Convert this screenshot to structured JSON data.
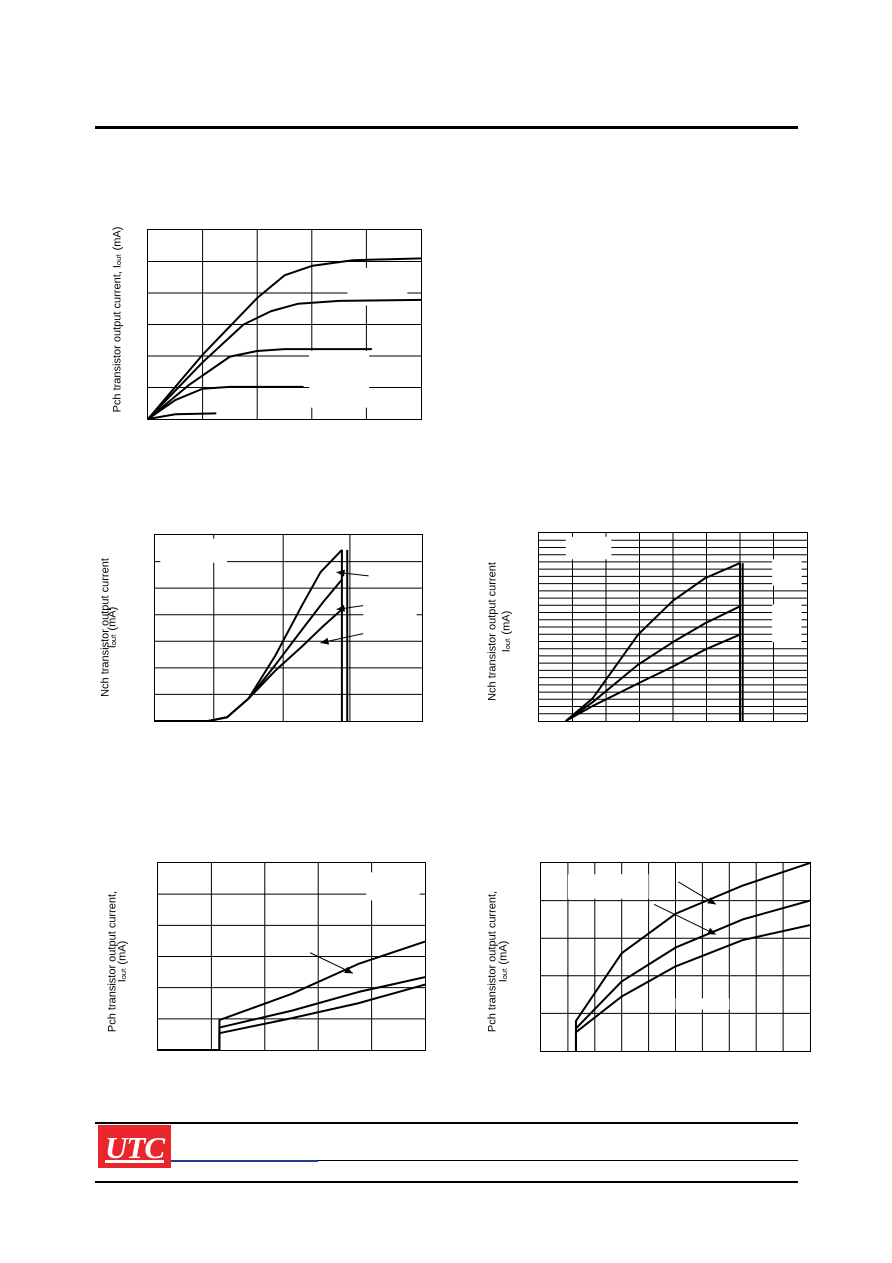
{
  "page": {
    "logo_text": "UTC",
    "brand_color": "#e8262c",
    "accent_color": "#2b3990"
  },
  "ylabels": {
    "chart1": "Pch transistor output current, Iₒᵤₜ (mA)",
    "chart2_l1": "Nch transistor output current",
    "chart2_l2": "Iₒᵤₜ (mA)",
    "chart3_l1": "Nch transistor output current",
    "chart3_l2": "Iₒᵤₜ (mA)",
    "chart4_l1": "Pch transistor output current,",
    "chart4_l2": "Iₒᵤₜ (mA)",
    "chart5_l1": "Pch transistor output current,",
    "chart5_l2": "Iₒᵤₜ (mA)"
  },
  "chart_data": [
    {
      "type": "line",
      "id": "chart1",
      "grid": true,
      "xdiv": 5,
      "ydiv": 6,
      "xlim": [
        0,
        1
      ],
      "ylim": [
        0,
        1
      ],
      "series": [
        {
          "values": [
            [
              0,
              0
            ],
            [
              0.2,
              0.34
            ],
            [
              0.4,
              0.64
            ],
            [
              0.5,
              0.76
            ],
            [
              0.6,
              0.81
            ],
            [
              0.75,
              0.84
            ],
            [
              1,
              0.85
            ]
          ]
        },
        {
          "values": [
            [
              0,
              0
            ],
            [
              0.2,
              0.3
            ],
            [
              0.35,
              0.5
            ],
            [
              0.45,
              0.57
            ],
            [
              0.55,
              0.61
            ],
            [
              0.7,
              0.625
            ],
            [
              1,
              0.63
            ]
          ]
        },
        {
          "values": [
            [
              0,
              0
            ],
            [
              0.15,
              0.18
            ],
            [
              0.3,
              0.33
            ],
            [
              0.4,
              0.36
            ],
            [
              0.5,
              0.37
            ],
            [
              0.82,
              0.37
            ]
          ]
        },
        {
          "values": [
            [
              0,
              0
            ],
            [
              0.1,
              0.1
            ],
            [
              0.2,
              0.16
            ],
            [
              0.3,
              0.17
            ],
            [
              0.57,
              0.17
            ]
          ]
        },
        {
          "values": [
            [
              0,
              0
            ],
            [
              0.1,
              0.025
            ],
            [
              0.25,
              0.03
            ]
          ]
        }
      ],
      "whiteouts": [
        [
          0.73,
          0.8,
          0.95,
          0.6
        ],
        [
          0.59,
          0.36,
          0.81,
          0.06
        ]
      ],
      "arrows": []
    },
    {
      "type": "line",
      "id": "chart2",
      "grid": true,
      "xdiv": [
        0,
        0.22,
        0.48,
        0.73,
        1
      ],
      "ydiv": 7,
      "xlim": [
        0,
        1
      ],
      "ylim": [
        0,
        1
      ],
      "series": [
        {
          "values": [
            [
              0,
              0
            ],
            [
              0.2,
              0
            ],
            [
              0.27,
              0.02
            ],
            [
              0.35,
              0.12
            ],
            [
              0.45,
              0.35
            ],
            [
              0.55,
              0.62
            ],
            [
              0.62,
              0.8
            ],
            [
              0.7,
              0.92
            ]
          ]
        },
        {
          "values": [
            [
              0,
              0
            ],
            [
              0.2,
              0
            ],
            [
              0.27,
              0.02
            ],
            [
              0.35,
              0.12
            ],
            [
              0.45,
              0.3
            ],
            [
              0.55,
              0.49
            ],
            [
              0.63,
              0.64
            ],
            [
              0.7,
              0.76
            ]
          ]
        },
        {
          "values": [
            [
              0,
              0
            ],
            [
              0.2,
              0
            ],
            [
              0.27,
              0.02
            ],
            [
              0.35,
              0.12
            ],
            [
              0.45,
              0.27
            ],
            [
              0.55,
              0.4
            ],
            [
              0.63,
              0.51
            ],
            [
              0.7,
              0.6
            ]
          ]
        },
        {
          "values": [
            [
              0.7,
              0.92
            ],
            [
              0.7,
              0
            ]
          ]
        },
        {
          "values": [
            [
              0.72,
              0.92
            ],
            [
              0.72,
              0
            ]
          ]
        }
      ],
      "whiteouts": [
        [
          0.78,
          0.63,
          0.98,
          0.47
        ],
        [
          0.02,
          0.98,
          0.27,
          0.85
        ]
      ],
      "arrows": [
        [
          0.8,
          0.78,
          0.68,
          0.8
        ],
        [
          0.78,
          0.62,
          0.68,
          0.6
        ],
        [
          0.78,
          0.47,
          0.62,
          0.42
        ]
      ]
    },
    {
      "type": "line",
      "id": "chart3",
      "grid": true,
      "xdiv": 8,
      "ydiv": 26,
      "xlim": [
        0,
        1
      ],
      "ylim": [
        0,
        1
      ],
      "series": [
        {
          "values": [
            [
              0.1,
              0
            ],
            [
              0.2,
              0.12
            ],
            [
              0.37,
              0.46
            ],
            [
              0.5,
              0.64
            ],
            [
              0.62,
              0.76
            ],
            [
              0.75,
              0.84
            ]
          ]
        },
        {
          "values": [
            [
              0.1,
              0
            ],
            [
              0.2,
              0.1
            ],
            [
              0.37,
              0.3
            ],
            [
              0.5,
              0.42
            ],
            [
              0.62,
              0.52
            ],
            [
              0.75,
              0.61
            ]
          ]
        },
        {
          "values": [
            [
              0.1,
              0
            ],
            [
              0.2,
              0.08
            ],
            [
              0.37,
              0.2
            ],
            [
              0.5,
              0.29
            ],
            [
              0.62,
              0.38
            ],
            [
              0.75,
              0.46
            ]
          ]
        },
        {
          "values": [
            [
              0.75,
              0.84
            ],
            [
              0.75,
              0
            ]
          ]
        },
        {
          "values": [
            [
              0.76,
              0.84
            ],
            [
              0.76,
              0
            ]
          ]
        }
      ],
      "whiteouts": [
        [
          0.1,
          0.98,
          0.27,
          0.86
        ],
        [
          0.87,
          0.86,
          0.98,
          0.72
        ],
        [
          0.87,
          0.62,
          0.98,
          0.42
        ]
      ],
      "arrows": []
    },
    {
      "type": "line",
      "id": "chart4",
      "grid": true,
      "xdiv": 5,
      "ydiv": 6,
      "xlim": [
        0,
        1
      ],
      "ylim": [
        0,
        1
      ],
      "series": [
        {
          "values": [
            [
              0,
              0
            ],
            [
              0.23,
              0
            ],
            [
              0.23,
              0.16
            ],
            [
              0.5,
              0.3
            ],
            [
              0.75,
              0.46
            ],
            [
              1,
              0.58
            ]
          ]
        },
        {
          "values": [
            [
              0,
              0
            ],
            [
              0.23,
              0
            ],
            [
              0.23,
              0.12
            ],
            [
              0.5,
              0.21
            ],
            [
              0.75,
              0.31
            ],
            [
              1,
              0.39
            ]
          ]
        },
        {
          "values": [
            [
              0,
              0
            ],
            [
              0.23,
              0
            ],
            [
              0.23,
              0.09
            ],
            [
              0.5,
              0.17
            ],
            [
              0.75,
              0.25
            ],
            [
              1,
              0.35
            ]
          ]
        }
      ],
      "whiteouts": [
        [
          0.78,
          0.95,
          0.98,
          0.8
        ]
      ],
      "arrows": [
        [
          0.57,
          0.52,
          0.73,
          0.41
        ]
      ]
    },
    {
      "type": "line",
      "id": "chart5",
      "grid": true,
      "xdiv": 10,
      "ydiv": 5,
      "xlim": [
        0,
        1
      ],
      "ylim": [
        0,
        1
      ],
      "series": [
        {
          "values": [
            [
              0.13,
              0
            ],
            [
              0.13,
              0.16
            ],
            [
              0.3,
              0.52
            ],
            [
              0.5,
              0.73
            ],
            [
              0.75,
              0.88
            ],
            [
              1,
              1
            ]
          ]
        },
        {
          "values": [
            [
              0.13,
              0
            ],
            [
              0.13,
              0.12
            ],
            [
              0.3,
              0.37
            ],
            [
              0.5,
              0.55
            ],
            [
              0.75,
              0.7
            ],
            [
              1,
              0.8
            ]
          ]
        },
        {
          "values": [
            [
              0.13,
              0
            ],
            [
              0.13,
              0.1
            ],
            [
              0.3,
              0.29
            ],
            [
              0.5,
              0.45
            ],
            [
              0.75,
              0.59
            ],
            [
              1,
              0.67
            ]
          ]
        }
      ],
      "whiteouts": [
        [
          0.1,
          0.94,
          0.4,
          0.81
        ],
        [
          0.5,
          0.28,
          0.7,
          0.22
        ]
      ],
      "arrows": [
        [
          0.51,
          0.9,
          0.65,
          0.78
        ],
        [
          0.42,
          0.78,
          0.65,
          0.62
        ]
      ]
    }
  ]
}
